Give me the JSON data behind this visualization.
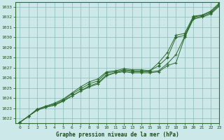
{
  "title": "Graphe pression niveau de la mer (hPa)",
  "bg_color": "#cce8e8",
  "plot_bg_color": "#cce8e8",
  "line_color": "#2d6a2d",
  "grid_color": "#88bbbb",
  "text_color": "#1a4a1a",
  "xlim": [
    -0.5,
    23
  ],
  "ylim": [
    1021.5,
    1033.5
  ],
  "yticks": [
    1022,
    1023,
    1024,
    1025,
    1026,
    1027,
    1028,
    1029,
    1030,
    1031,
    1032,
    1033
  ],
  "xticks": [
    0,
    1,
    2,
    3,
    4,
    5,
    6,
    7,
    8,
    9,
    10,
    11,
    12,
    13,
    14,
    15,
    16,
    17,
    18,
    19,
    20,
    21,
    22,
    23
  ],
  "series": [
    [
      1021.6,
      1022.2,
      1022.8,
      1023.1,
      1023.3,
      1023.7,
      1024.2,
      1024.7,
      1025.1,
      1025.4,
      1026.2,
      1026.5,
      1026.6,
      1026.5,
      1026.5,
      1026.5,
      1026.6,
      1027.2,
      1027.5,
      1030.0,
      1031.8,
      1032.0,
      1032.3,
      1033.1
    ],
    [
      1021.6,
      1022.2,
      1022.8,
      1023.1,
      1023.3,
      1023.7,
      1024.2,
      1024.7,
      1025.2,
      1025.5,
      1026.3,
      1026.5,
      1026.7,
      1026.6,
      1026.6,
      1026.6,
      1026.7,
      1027.4,
      1028.3,
      1030.1,
      1031.9,
      1032.1,
      1032.4,
      1033.2
    ],
    [
      1021.6,
      1022.2,
      1022.9,
      1023.2,
      1023.4,
      1023.8,
      1024.4,
      1024.9,
      1025.4,
      1025.7,
      1026.5,
      1026.6,
      1026.8,
      1026.7,
      1026.7,
      1026.7,
      1027.2,
      1028.0,
      1030.0,
      1030.2,
      1032.0,
      1032.2,
      1032.5,
      1033.3
    ],
    [
      1021.6,
      1022.2,
      1022.9,
      1023.2,
      1023.5,
      1023.9,
      1024.5,
      1025.1,
      1025.6,
      1025.9,
      1026.6,
      1026.7,
      1026.9,
      1026.8,
      1026.8,
      1026.7,
      1027.5,
      1028.5,
      1030.2,
      1030.4,
      1032.1,
      1032.2,
      1032.6,
      1033.4
    ]
  ]
}
